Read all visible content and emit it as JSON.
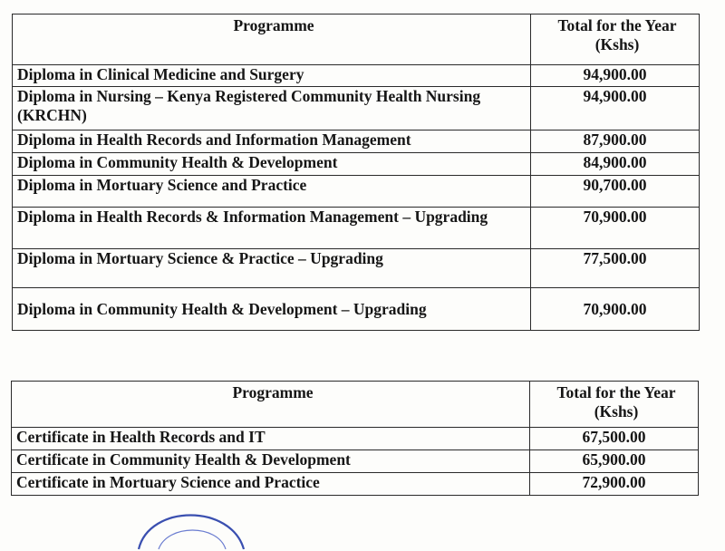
{
  "diploma_table": {
    "header_programme": "Programme",
    "header_total_line1": "Total for the Year",
    "header_total_line2": "(Kshs)",
    "rows": [
      {
        "programme": "Diploma in Clinical Medicine and Surgery",
        "total": "94,900.00"
      },
      {
        "programme": "Diploma in Nursing – Kenya Registered Community Health Nursing (KRCHN)",
        "total": "94,900.00"
      },
      {
        "programme": "Diploma in Health Records and Information Management",
        "total": "87,900.00"
      },
      {
        "programme": "Diploma in Community Health & Development",
        "total": "84,900.00"
      },
      {
        "programme": "Diploma in Mortuary Science and Practice",
        "total": "90,700.00"
      },
      {
        "programme": "Diploma in Health Records & Information Management – Upgrading",
        "total": "70,900.00"
      },
      {
        "programme": "Diploma in Mortuary Science & Practice – Upgrading",
        "total": "77,500.00"
      },
      {
        "programme": "Diploma in Community Health & Development – Upgrading",
        "total": "70,900.00"
      }
    ]
  },
  "certificate_table": {
    "header_programme": "Programme",
    "header_total_line1": "Total for the Year",
    "header_total_line2": "(Kshs)",
    "rows": [
      {
        "programme": "Certificate in Health Records and IT",
        "total": "67,500.00"
      },
      {
        "programme": "Certificate in Community Health & Development",
        "total": "65,900.00"
      },
      {
        "programme": "Certificate in Mortuary Science and Practice",
        "total": "72,900.00"
      }
    ]
  },
  "colors": {
    "ink": "#161616",
    "border": "#2a2a2a",
    "stamp": "#3a4fb0"
  }
}
